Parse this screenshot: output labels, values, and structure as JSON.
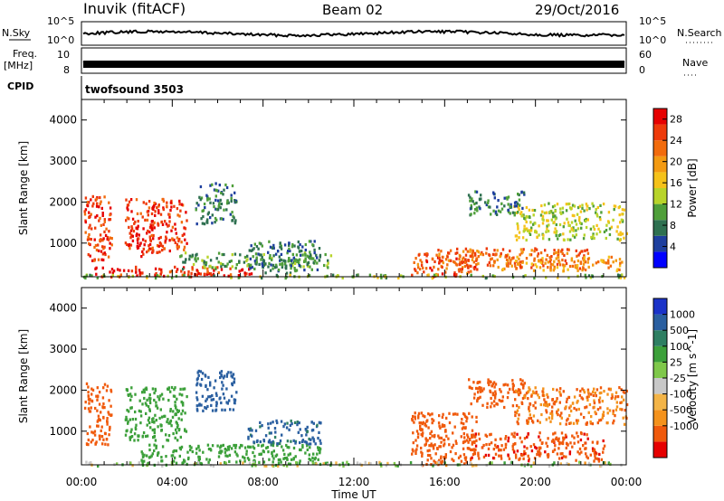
{
  "header": {
    "station": "Inuvik (fitACF)",
    "beam": "Beam 02",
    "date": "29/Oct/2016"
  },
  "aux_panels": {
    "nsky_label": "N.Sky",
    "nsearch_label": "N.Search",
    "nsky_ticks": [
      "10^5",
      "10^0"
    ],
    "freq_label_1": "Freq.",
    "freq_label_2": "[MHz]",
    "freq_ticks": [
      "10",
      "8"
    ],
    "nave_label": "Nave",
    "nave_ticks": [
      "60",
      "0"
    ],
    "cpid_label": "CPID",
    "cpid_value": "twofsound 3503"
  },
  "colors": {
    "power_scale": [
      "#0000ff",
      "#1e3f9e",
      "#2e7050",
      "#4f9f3a",
      "#b8d42a",
      "#f5c21a",
      "#f39a12",
      "#f26b0c",
      "#ee3a0a",
      "#e60000"
    ],
    "velocity_scale": [
      "#e60000",
      "#f05a0c",
      "#f4921c",
      "#f3b447",
      "#c8c8c8",
      "#7fc84a",
      "#3ca03a",
      "#2e7f62",
      "#2a5fa0",
      "#1b33c8"
    ]
  },
  "chart_data": [
    {
      "type": "heatmap",
      "panel": "power",
      "xlabel": "",
      "ylabel": "Slant Range [km]",
      "x_ticks": [
        "00:00",
        "04:00",
        "08:00",
        "12:00",
        "16:00",
        "20:00",
        "00:00"
      ],
      "x_range_hours": [
        0,
        24
      ],
      "y_ticks": [
        1000,
        2000,
        3000,
        4000
      ],
      "ylim": [
        180,
        4500
      ],
      "colorbar_label": "Power [dB]",
      "colorbar_ticks": [
        4,
        8,
        12,
        16,
        20,
        24,
        28
      ],
      "colorbar_range": [
        0,
        30
      ],
      "regions": [
        {
          "t": [
            0.1,
            1.3
          ],
          "r": [
            600,
            2200
          ],
          "v": 26
        },
        {
          "t": [
            1.9,
            3.2
          ],
          "r": [
            700,
            2100
          ],
          "v": 27
        },
        {
          "t": [
            3.0,
            4.6
          ],
          "r": [
            800,
            2100
          ],
          "v": 26
        },
        {
          "t": [
            0.4,
            7.5
          ],
          "r": [
            200,
            450
          ],
          "v": 27
        },
        {
          "t": [
            4.3,
            11.0
          ],
          "r": [
            400,
            800
          ],
          "v": 10
        },
        {
          "t": [
            7.3,
            10.5
          ],
          "r": [
            300,
            1100
          ],
          "v": 8
        },
        {
          "t": [
            14.5,
            17.4
          ],
          "r": [
            200,
            800
          ],
          "v": 24
        },
        {
          "t": [
            15.6,
            22.3
          ],
          "r": [
            400,
            900
          ],
          "v": 23
        },
        {
          "t": [
            18.5,
            23.8
          ],
          "r": [
            350,
            700
          ],
          "v": 20
        },
        {
          "t": [
            19.0,
            24.0
          ],
          "r": [
            1100,
            2000
          ],
          "v": 14
        },
        {
          "t": [
            17.0,
            19.5
          ],
          "r": [
            1700,
            2300
          ],
          "v": 8
        },
        {
          "t": [
            5.0,
            6.8
          ],
          "r": [
            1500,
            2500
          ],
          "v": 8
        },
        {
          "t": [
            0.0,
            24.0
          ],
          "r": [
            180,
            260
          ],
          "v": 12
        }
      ]
    },
    {
      "type": "heatmap",
      "panel": "velocity",
      "xlabel": "Time UT",
      "ylabel": "Slant Range [km]",
      "x_ticks": [
        "00:00",
        "04:00",
        "08:00",
        "12:00",
        "16:00",
        "20:00",
        "00:00"
      ],
      "x_range_hours": [
        0,
        24
      ],
      "y_ticks": [
        1000,
        2000,
        3000,
        4000
      ],
      "ylim": [
        180,
        4500
      ],
      "colorbar_label": "Velocity [m s^-1]",
      "colorbar_ticks": [
        "1000",
        "500",
        "100",
        "25",
        "-25",
        "-100",
        "-500",
        "-1000"
      ],
      "regions": [
        {
          "t": [
            0.1,
            1.3
          ],
          "r": [
            700,
            2200
          ],
          "v": -500
        },
        {
          "t": [
            1.9,
            4.6
          ],
          "r": [
            800,
            2100
          ],
          "v": 200
        },
        {
          "t": [
            2.5,
            10.5
          ],
          "r": [
            200,
            700
          ],
          "v": 150
        },
        {
          "t": [
            7.3,
            10.5
          ],
          "r": [
            700,
            1300
          ],
          "v": 800
        },
        {
          "t": [
            14.5,
            17.4
          ],
          "r": [
            200,
            1500
          ],
          "v": -400
        },
        {
          "t": [
            17.0,
            23.0
          ],
          "r": [
            300,
            1000
          ],
          "v": -700
        },
        {
          "t": [
            19.0,
            24.0
          ],
          "r": [
            1200,
            2100
          ],
          "v": -300
        },
        {
          "t": [
            17.0,
            19.5
          ],
          "r": [
            1600,
            2300
          ],
          "v": -500
        },
        {
          "t": [
            5.0,
            6.8
          ],
          "r": [
            1500,
            2500
          ],
          "v": 900
        },
        {
          "t": [
            0.0,
            24.0
          ],
          "r": [
            180,
            280
          ],
          "v": 10
        }
      ]
    }
  ]
}
